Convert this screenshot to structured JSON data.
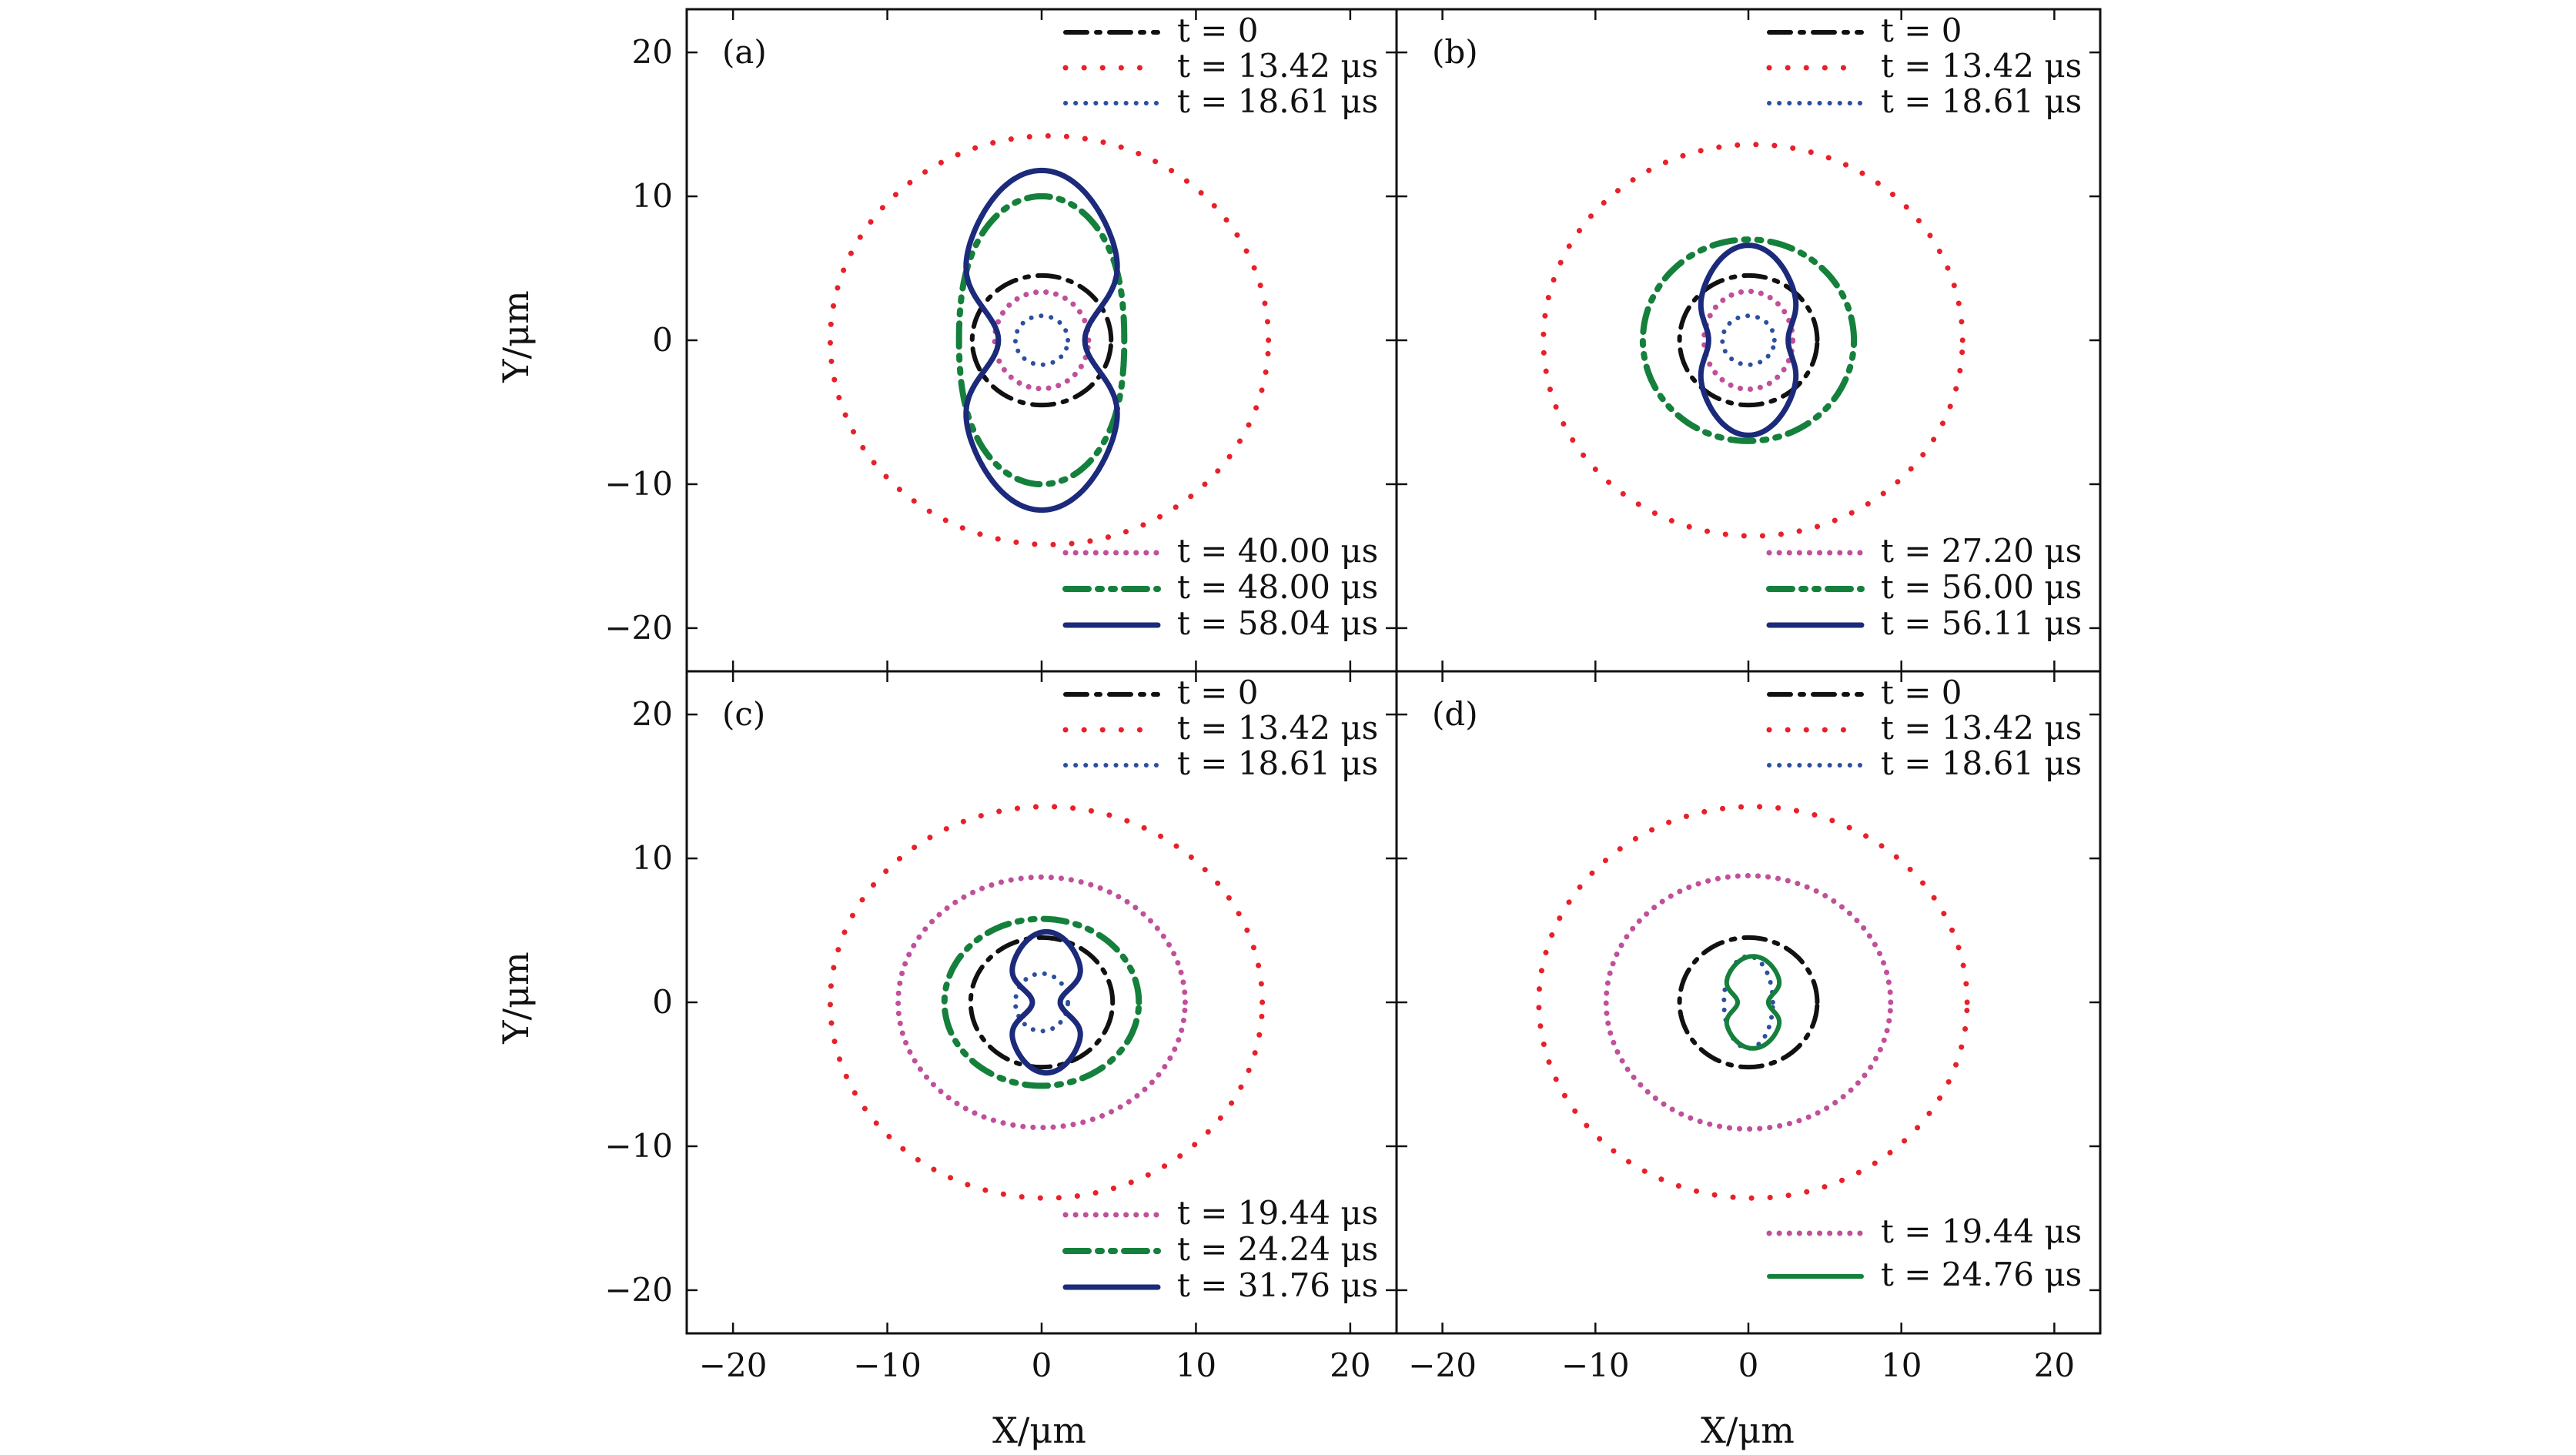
{
  "figure": {
    "y_axis_label": "Y/μm",
    "x_axis_label": "X/μm"
  },
  "styles": {
    "dashdot_black": {
      "color": "#111111",
      "dash": "dashdot",
      "width": 6
    },
    "dotted_red": {
      "color": "#e8202a",
      "dash": "bigdots",
      "width": 7
    },
    "dotted_blue": {
      "color": "#2c4f9e",
      "dash": "smalldots",
      "width": 6
    },
    "dotted_magenta": {
      "color": "#c0509a",
      "dash": "smalldots",
      "width": 7
    },
    "dashdot_green": {
      "color": "#15803c",
      "dash": "dashdotdot",
      "width": 8
    },
    "solid_navy": {
      "color": "#1b2a7a",
      "dash": "solid",
      "width": 7
    },
    "solid_green": {
      "color": "#15803c",
      "dash": "solid",
      "width": 6
    }
  },
  "chart_data": [
    {
      "type": "line",
      "panel": "(a)",
      "xlim": [
        -23,
        23
      ],
      "ylim": [
        -23,
        23
      ],
      "xticks": [
        -20,
        -10,
        0,
        10,
        20
      ],
      "yticks": [
        -20,
        -10,
        0,
        10,
        20
      ],
      "tick_labels": [
        "−20",
        "−10",
        "0",
        "10",
        "20"
      ],
      "legend_top": [
        "t = 0",
        "t = 13.42 μs",
        "t = 18.61 μs"
      ],
      "legend_bottom": [
        "t = 40.00 μs",
        "t = 48.00 μs",
        "t = 58.04 μs"
      ],
      "series": [
        {
          "name": "t = 0",
          "style": "dashdot_black",
          "shape": {
            "r": 4.5,
            "k": 0,
            "cx": 0
          }
        },
        {
          "name": "t = 13.42 μs",
          "style": "dotted_red",
          "shape": {
            "r": 14.2,
            "k": 0,
            "cx": 0.5
          }
        },
        {
          "name": "t = 18.61 μs",
          "style": "dotted_blue",
          "shape": {
            "r": 1.7,
            "k": 0,
            "cx": 0
          }
        },
        {
          "name": "t = 40.00 μs",
          "style": "dotted_magenta",
          "shape": {
            "ax": 3.2,
            "ay": 3.2,
            "k": -0.05,
            "cx": 0
          }
        },
        {
          "name": "t = 48.00 μs",
          "style": "dashdot_green",
          "shape": {
            "ax": 6.3,
            "ay": 8.7,
            "k": -0.15,
            "cx": 0
          }
        },
        {
          "name": "t = 58.04 μs",
          "style": "solid_navy",
          "shape": {
            "peanut_w": 5.7,
            "ay": 11.8,
            "waist": 2.8,
            "cx": 0
          }
        }
      ]
    },
    {
      "type": "line",
      "panel": "(b)",
      "xlim": [
        -23,
        23
      ],
      "ylim": [
        -23,
        23
      ],
      "xticks": [
        -20,
        -10,
        0,
        10,
        20
      ],
      "yticks": [
        -20,
        -10,
        0,
        10,
        20
      ],
      "tick_labels": [
        "−20",
        "−10",
        "0",
        "10",
        "20"
      ],
      "legend_top": [
        "t = 0",
        "t = 13.42 μs",
        "t = 18.61 μs"
      ],
      "legend_bottom": [
        "t = 27.20 μs",
        "t = 56.00 μs",
        "t = 56.11 μs"
      ],
      "series": [
        {
          "name": "t = 0",
          "style": "dashdot_black",
          "shape": {
            "ax": 4.5,
            "ay": 4.5,
            "k": 0,
            "cx": 0
          }
        },
        {
          "name": "t = 13.42 μs",
          "style": "dotted_red",
          "shape": {
            "ax": 13.7,
            "ay": 13.6,
            "k": 0,
            "cx": 0.3
          }
        },
        {
          "name": "t = 18.61 μs",
          "style": "dotted_blue",
          "shape": {
            "ax": 1.7,
            "ay": 1.7,
            "k": 0,
            "cx": 0
          }
        },
        {
          "name": "t = 27.20 μs",
          "style": "dotted_magenta",
          "shape": {
            "ax": 2.9,
            "ay": 3.4,
            "k": 0,
            "cx": 0
          }
        },
        {
          "name": "t = 56.00 μs",
          "style": "dashdot_green",
          "shape": {
            "ax": 6.9,
            "ay": 7.0,
            "k": 0,
            "cx": 0
          }
        },
        {
          "name": "t = 56.11 μs",
          "style": "solid_navy",
          "shape": {
            "peanut_w": 3.5,
            "ay": 6.6,
            "waist": 2.6,
            "cx": 0
          }
        }
      ]
    },
    {
      "type": "line",
      "panel": "(c)",
      "xlim": [
        -23,
        23
      ],
      "ylim": [
        -23,
        23
      ],
      "xticks": [
        -20,
        -10,
        0,
        10,
        20
      ],
      "yticks": [
        -20,
        -10,
        0,
        10,
        20
      ],
      "tick_labels": [
        "−20",
        "−10",
        "0",
        "10",
        "20"
      ],
      "legend_top": [
        "t = 0",
        "t = 13.42 μs",
        "t = 18.61 μs"
      ],
      "legend_bottom": [
        "t = 19.44 μs",
        "t = 24.24 μs",
        "t = 31.76 μs"
      ],
      "series": [
        {
          "name": "t = 0",
          "style": "dashdot_black",
          "shape": {
            "ax": 4.6,
            "ay": 4.5,
            "k": 0,
            "cx": 0
          }
        },
        {
          "name": "t = 13.42 μs",
          "style": "dotted_red",
          "shape": {
            "ax": 14.0,
            "ay": 13.6,
            "k": 0,
            "cx": 0.3
          }
        },
        {
          "name": "t = 18.61 μs",
          "style": "dotted_blue",
          "shape": {
            "ax": 1.7,
            "ay": 2.0,
            "k": 0,
            "cx": 0
          }
        },
        {
          "name": "t = 19.44 μs",
          "style": "dotted_magenta",
          "shape": {
            "ax": 9.3,
            "ay": 8.7,
            "k": 0,
            "cx": 0
          }
        },
        {
          "name": "t = 24.24 μs",
          "style": "dashdot_green",
          "shape": {
            "ax": 6.3,
            "ay": 5.8,
            "k": 0,
            "cx": 0
          }
        },
        {
          "name": "t = 31.76 μs",
          "style": "solid_navy",
          "shape": {
            "peanut_w": 2.6,
            "ay": 4.9,
            "waist": 0.9,
            "cx": 0.3
          }
        }
      ]
    },
    {
      "type": "line",
      "panel": "(d)",
      "xlim": [
        -23,
        23
      ],
      "ylim": [
        -23,
        23
      ],
      "xticks": [
        -20,
        -10,
        0,
        10,
        20
      ],
      "yticks": [
        -20,
        -10,
        0,
        10,
        20
      ],
      "tick_labels": [
        "−20",
        "−10",
        "0",
        "10",
        "20"
      ],
      "legend_top": [
        "t = 0",
        "t = 13.42 μs",
        "t = 18.61 μs"
      ],
      "legend_bottom": [
        "t = 19.44 μs",
        "t = 24.76 μs"
      ],
      "series": [
        {
          "name": "t = 0",
          "style": "dashdot_black",
          "shape": {
            "ax": 4.5,
            "ay": 4.5,
            "k": 0,
            "cx": 0
          }
        },
        {
          "name": "t = 13.42 μs",
          "style": "dotted_red",
          "shape": {
            "ax": 14.0,
            "ay": 13.6,
            "k": 0,
            "cx": 0.3
          }
        },
        {
          "name": "t = 18.61 μs",
          "style": "dotted_blue",
          "shape": {
            "ax": 1.6,
            "ay": 3.2,
            "k": 0,
            "cx": 0
          }
        },
        {
          "name": "t = 19.44 μs",
          "style": "dotted_magenta",
          "shape": {
            "ax": 9.3,
            "ay": 8.8,
            "k": 0,
            "cx": 0
          }
        },
        {
          "name": "t = 24.76 μs",
          "style": "solid_green",
          "shape": {
            "peanut_w": 2.0,
            "ay": 3.2,
            "waist": 1.0,
            "cx": 0.3
          }
        }
      ]
    }
  ]
}
